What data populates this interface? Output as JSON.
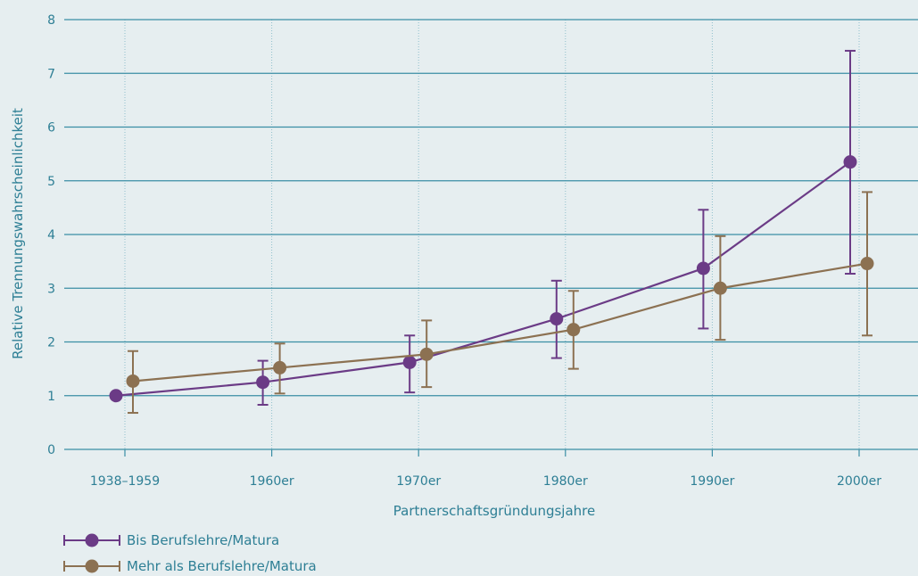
{
  "chart_data": {
    "type": "line",
    "xlabel": "Partnerschaftsgründungsjahre",
    "ylabel": "Relative Trennungswahrscheinlichkeit",
    "categories": [
      "1938–1959",
      "1960er",
      "1970er",
      "1980er",
      "1990er",
      "2000er"
    ],
    "ylim": [
      0,
      8
    ],
    "yticks": [
      "0",
      "1",
      "2",
      "3",
      "4",
      "5",
      "6",
      "7",
      "8"
    ],
    "grid": {
      "horizontal": true,
      "vertical": "dotted"
    },
    "legend_position": "bottom-left",
    "series": [
      {
        "name": "Bis Berufslehre/Matura",
        "color": "#6b3b86",
        "values": [
          1.0,
          1.25,
          1.62,
          2.43,
          3.37,
          5.35
        ],
        "lower": [
          null,
          0.83,
          1.06,
          1.7,
          2.25,
          3.27
        ],
        "upper": [
          null,
          1.65,
          2.12,
          3.14,
          4.46,
          7.42
        ],
        "offset": "left"
      },
      {
        "name": "Mehr als Berufslehre/Matura",
        "color": "#8c7152",
        "values": [
          1.27,
          1.52,
          1.77,
          2.23,
          3.0,
          3.46
        ],
        "lower": [
          0.68,
          1.04,
          1.16,
          1.5,
          2.04,
          2.12
        ],
        "upper": [
          1.83,
          1.97,
          2.4,
          2.95,
          3.97,
          4.79
        ],
        "offset": "right"
      }
    ]
  }
}
